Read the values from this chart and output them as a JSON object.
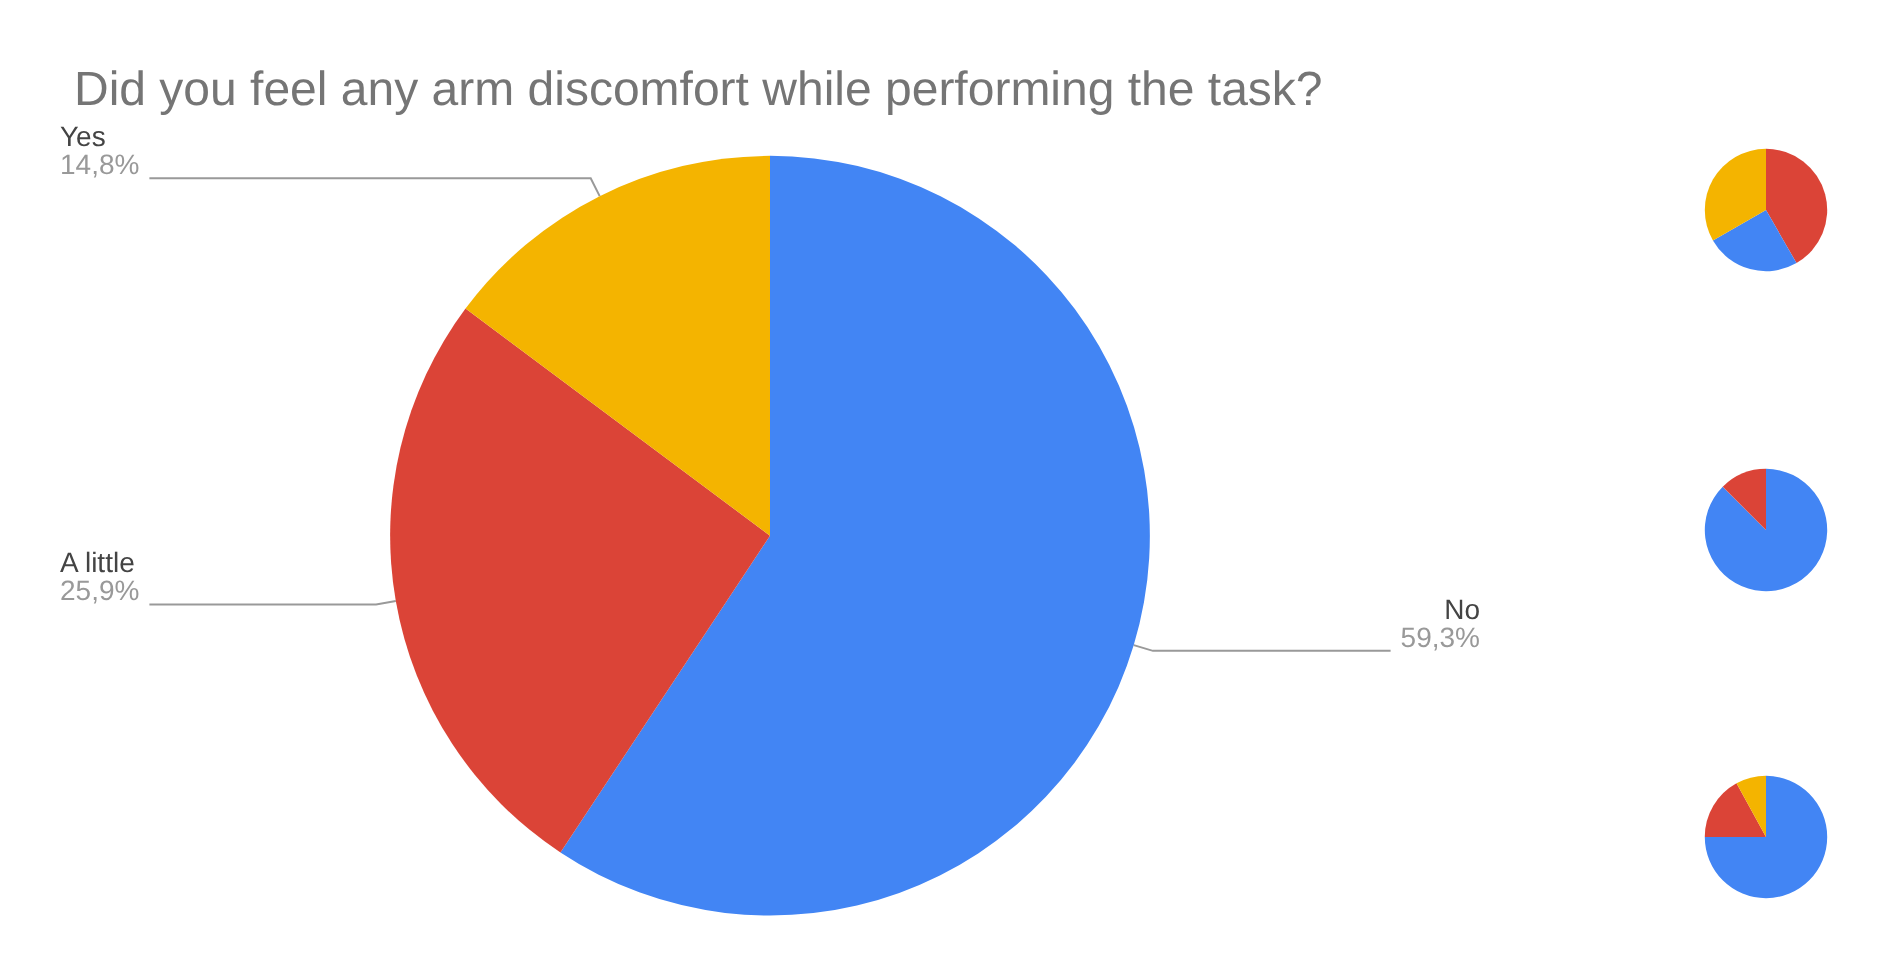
{
  "chart_data": [
    {
      "type": "pie",
      "title": "Did you feel any arm discomfort while performing the task?",
      "categories": [
        "No",
        "A little",
        "Yes"
      ],
      "values": [
        59.3,
        25.9,
        14.8
      ],
      "value_labels": [
        "59,3%",
        "25,9%",
        "14,8%"
      ],
      "colors": [
        "#4285f4",
        "#db4437",
        "#f4b400"
      ],
      "legend": false
    },
    {
      "type": "pie",
      "categories": [
        null,
        null,
        null
      ],
      "values": [
        41.7,
        25,
        33.3
      ],
      "colors": [
        "#db4437",
        "#4285f4",
        "#f4b400"
      ],
      "legend": false
    },
    {
      "type": "pie",
      "categories": [
        null,
        null
      ],
      "values": [
        87.5,
        12.5
      ],
      "colors": [
        "#4285f4",
        "#db4437"
      ],
      "legend": false
    },
    {
      "type": "pie",
      "categories": [
        null,
        null,
        null
      ],
      "values": [
        75,
        17,
        8
      ],
      "colors": [
        "#4285f4",
        "#db4437",
        "#f4b400"
      ],
      "legend": false
    }
  ]
}
